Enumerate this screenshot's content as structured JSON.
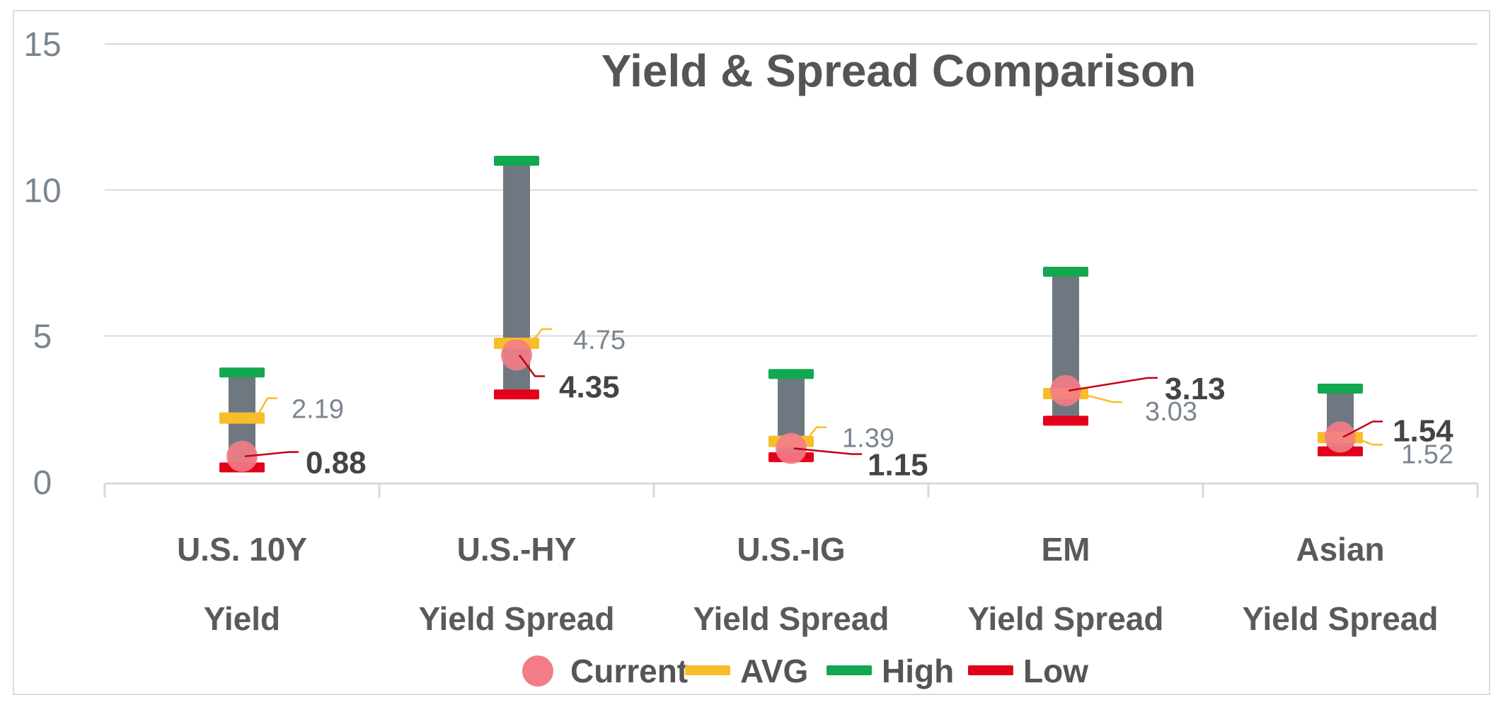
{
  "chart_data": {
    "type": "range-dot",
    "title": "Yield & Spread Comparison",
    "ylim": [
      0,
      15
    ],
    "yticks": [
      0,
      5,
      10,
      15
    ],
    "categories": [
      {
        "line1": "U.S. 10Y",
        "line2": "Yield",
        "low": 0.5,
        "high": 3.75,
        "avg": 2.19,
        "current": 0.88,
        "avg_label": "2.19",
        "current_label": "0.88"
      },
      {
        "line1": "U.S.-HY",
        "line2": "Yield Spread",
        "low": 3.0,
        "high": 11.0,
        "avg": 4.75,
        "current": 4.35,
        "avg_label": "4.75",
        "current_label": "4.35"
      },
      {
        "line1": "U.S.-IG",
        "line2": "Yield Spread",
        "low": 0.85,
        "high": 3.7,
        "avg": 1.39,
        "current": 1.15,
        "avg_label": "1.39",
        "current_label": "1.15"
      },
      {
        "line1": "EM",
        "line2": "Yield Spread",
        "low": 2.1,
        "high": 7.2,
        "avg": 3.03,
        "current": 3.13,
        "avg_label": "3.03",
        "current_label": "3.13"
      },
      {
        "line1": "Asian",
        "line2": "Yield Spread",
        "low": 1.05,
        "high": 3.2,
        "avg": 1.52,
        "current": 1.54,
        "avg_label": "1.52",
        "current_label": "1.54"
      }
    ],
    "legend": [
      {
        "key": "current",
        "label": "Current"
      },
      {
        "key": "avg",
        "label": "AVG"
      },
      {
        "key": "high",
        "label": "High"
      },
      {
        "key": "low",
        "label": "Low"
      }
    ],
    "legend_position": "bottom"
  },
  "colors": {
    "range_bar": "#6f7880",
    "current": "#f47c86",
    "avg": "#f7bd2a",
    "high": "#11a84f",
    "low": "#e2001a",
    "current_leader": "#c00018",
    "avg_leader": "#f7bd2a",
    "grid": "#d9d9d9"
  }
}
